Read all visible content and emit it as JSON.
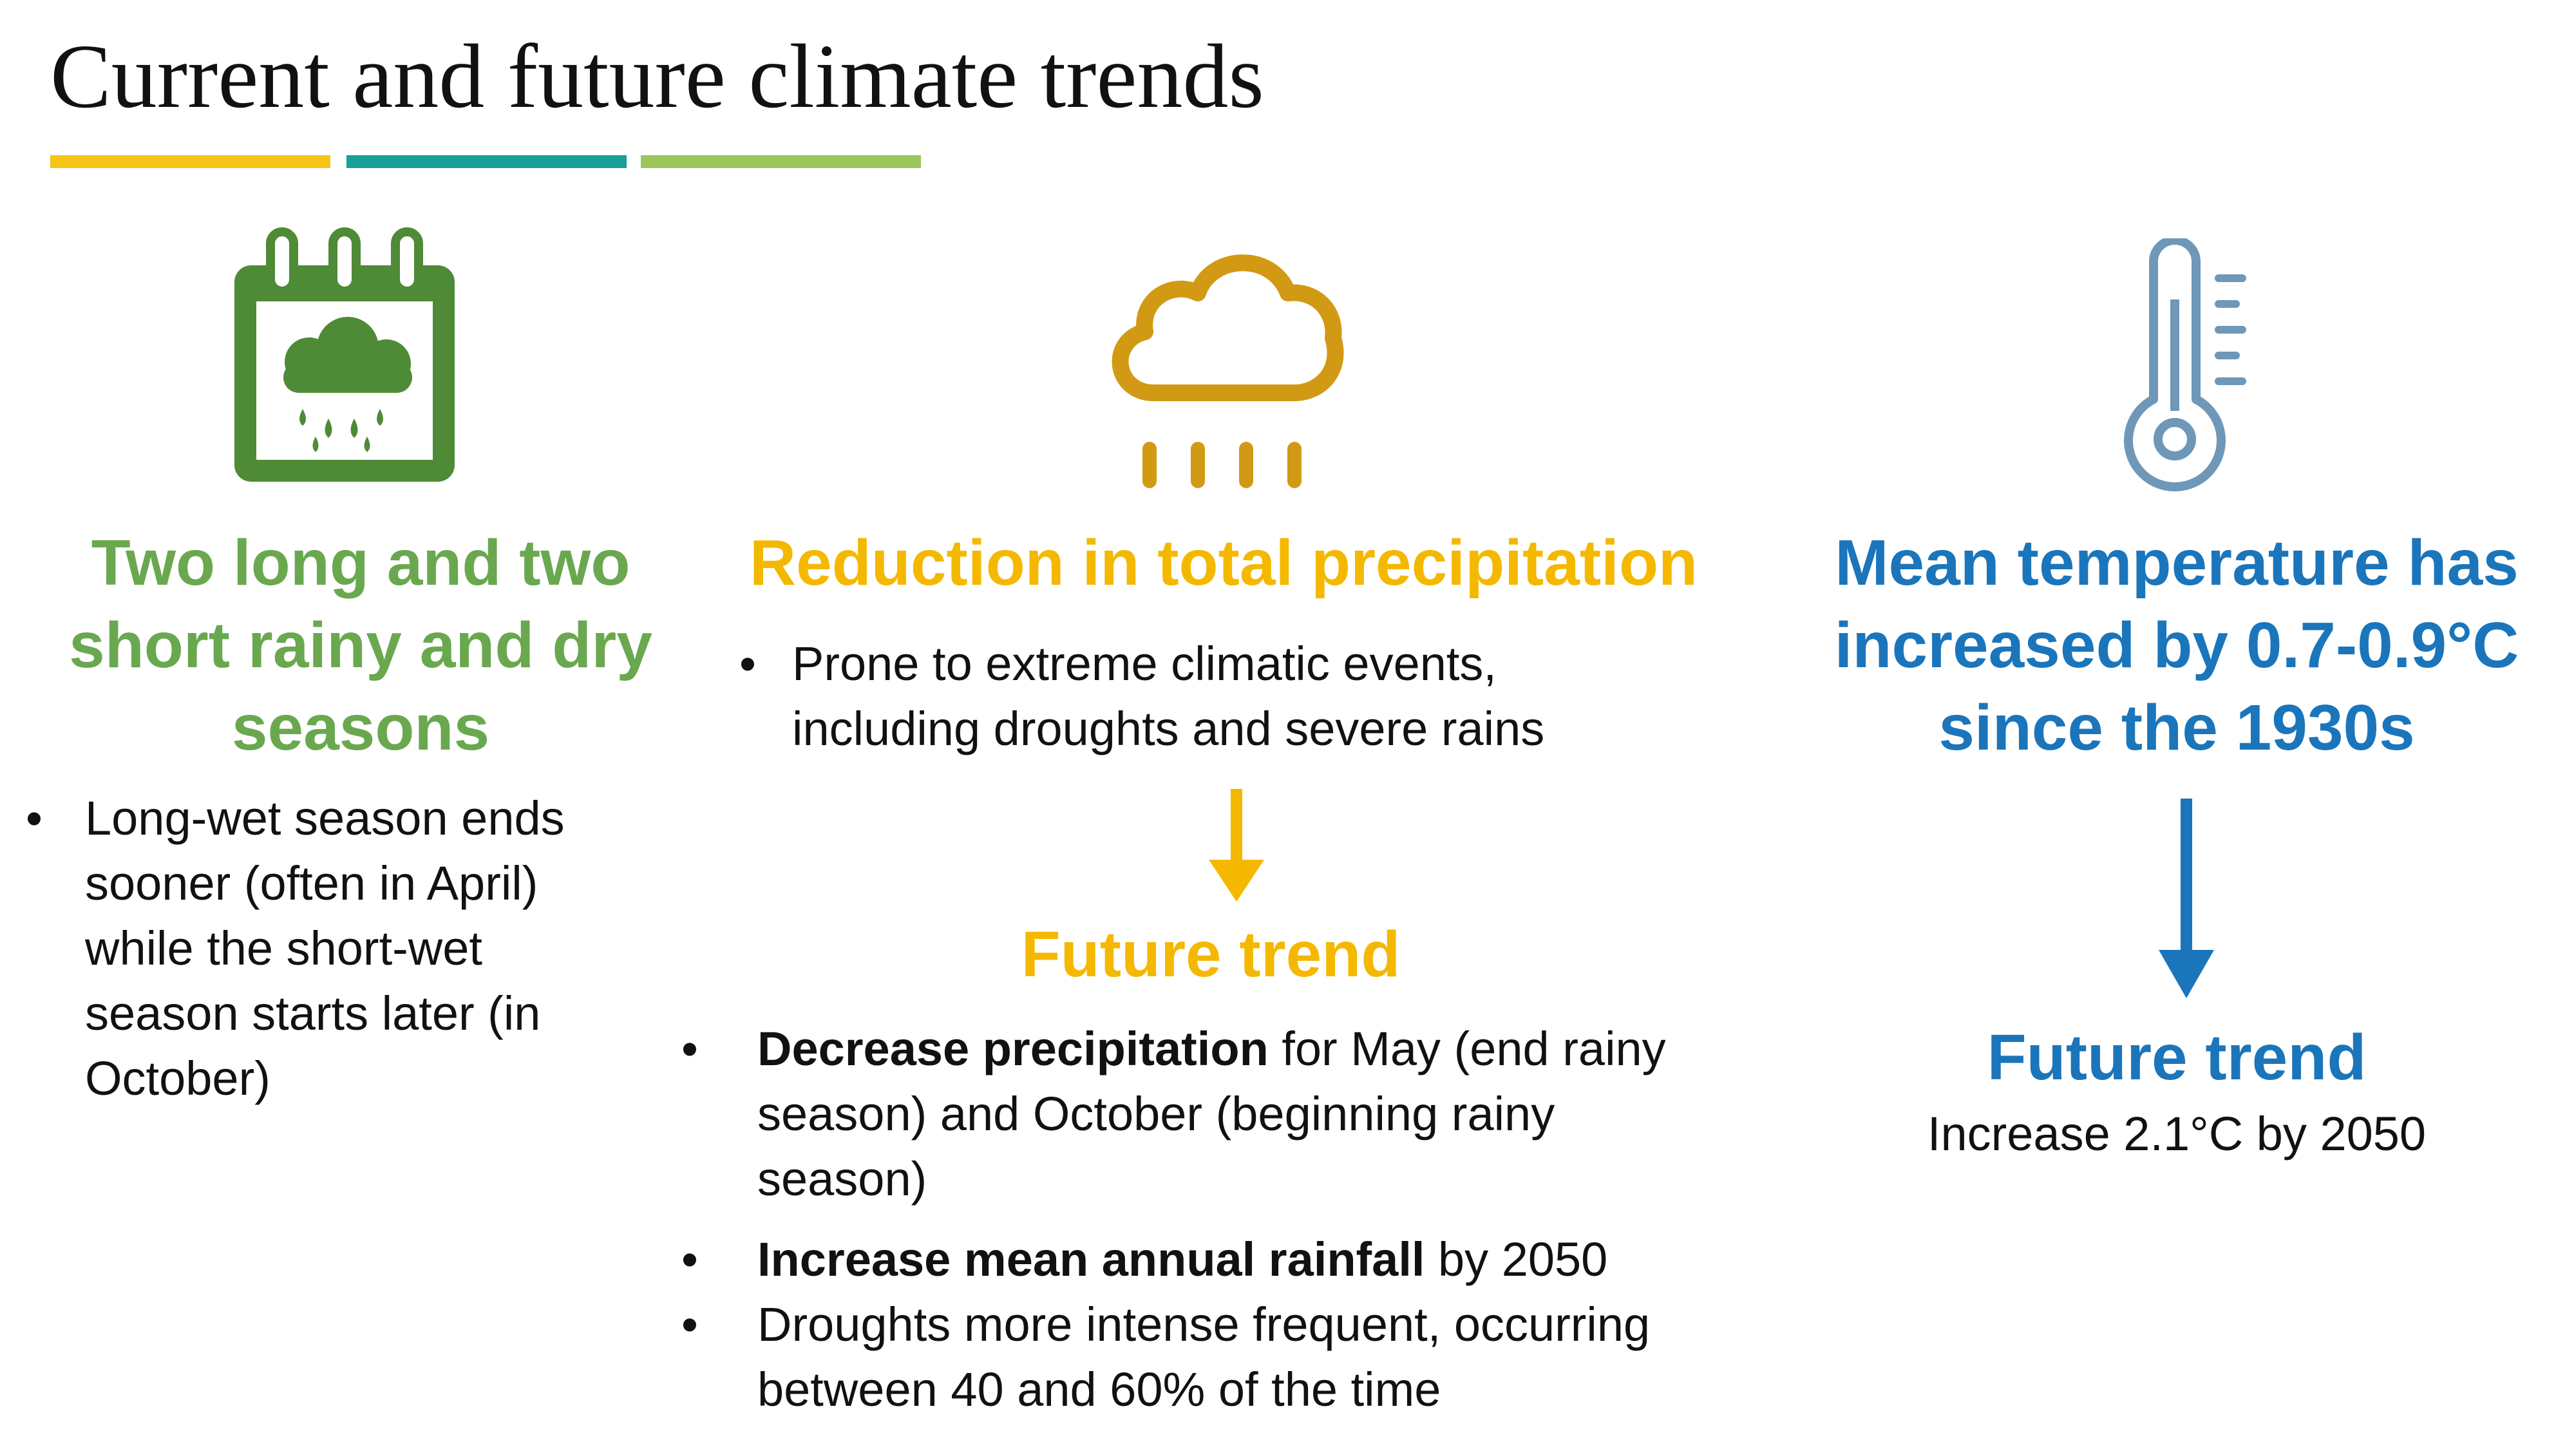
{
  "page": {
    "title": "Current and future climate trends",
    "accent_colors": [
      "#f5c518",
      "#17a096",
      "#9cc65c"
    ]
  },
  "columns": {
    "seasons": {
      "icon": "calendar-rain-icon",
      "color": "#6aa84f",
      "heading": "Two long and two short rainy and dry seasons",
      "bullets": [
        "Long-wet season ends sooner (often in April) while the short-wet season starts later (in October)"
      ]
    },
    "precipitation": {
      "icon": "rain-cloud-icon",
      "color": "#f5b800",
      "heading": "Reduction in total precipitation",
      "bullets": [
        "Prone to extreme climatic events, including droughts and severe rains"
      ],
      "arrow_icon": "arrow-down-icon",
      "future_heading": "Future trend",
      "future_bullets": [
        {
          "bold": "Decrease precipitation",
          "text": " for May (end rainy season) and October (beginning rainy season)"
        },
        {
          "bold": "Increase mean annual rainfall",
          "text": " by 2050"
        },
        {
          "bold": "",
          "text": "Droughts more intense frequent, occurring between 40 and 60% of the time"
        }
      ]
    },
    "temperature": {
      "icon": "thermometer-icon",
      "color": "#1b75bb",
      "heading": "Mean temperature has increased by 0.7-0.9°C since the 1930s",
      "arrow_icon": "arrow-down-icon",
      "future_heading": "Future trend",
      "future_text": "Increase 2.1°C by 2050"
    }
  }
}
